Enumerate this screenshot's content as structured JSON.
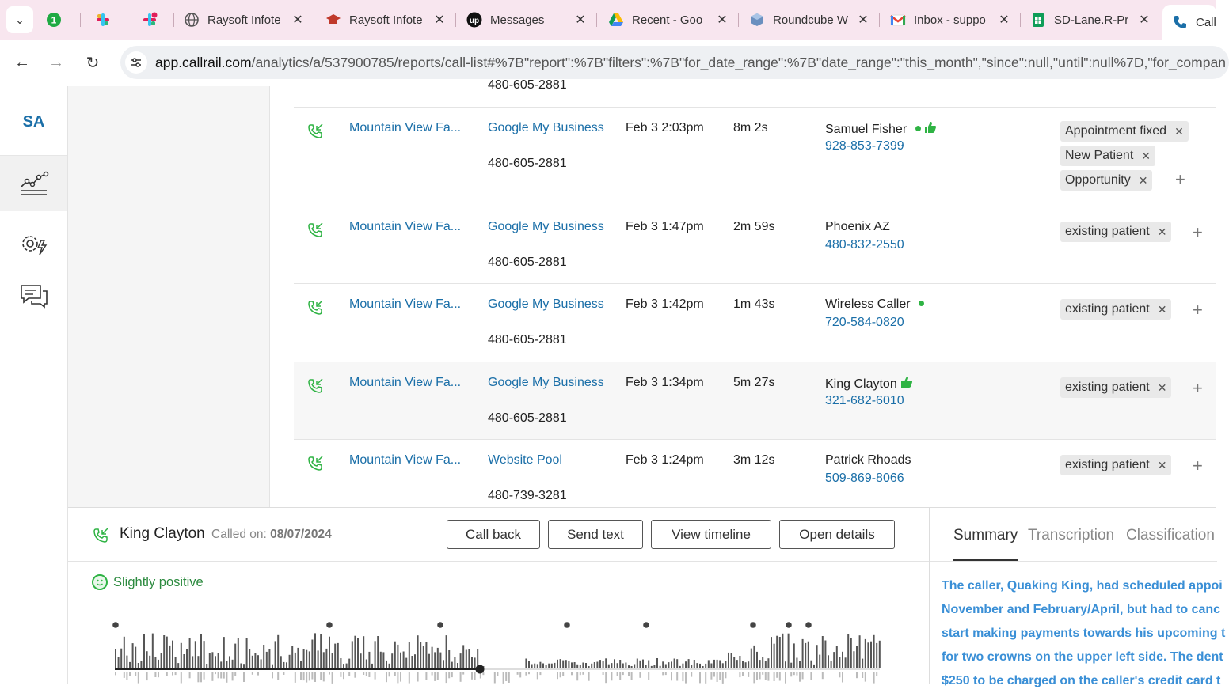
{
  "browser": {
    "tabs": [
      {
        "title": "",
        "icon": "counter-badge-icon",
        "badge": "1"
      },
      {
        "title": "",
        "icon": "slack-icon"
      },
      {
        "title": "",
        "icon": "slack-notify-icon"
      },
      {
        "title": "Raysoft Infote",
        "icon": "globe-icon"
      },
      {
        "title": "Raysoft Infote",
        "icon": "graduation-icon"
      },
      {
        "title": "Messages",
        "icon": "upwork-icon"
      },
      {
        "title": "Recent - Goo",
        "icon": "google-drive-icon"
      },
      {
        "title": "Roundcube W",
        "icon": "roundcube-icon"
      },
      {
        "title": "Inbox - suppo",
        "icon": "gmail-icon"
      },
      {
        "title": "SD-Lane.R-Pr",
        "icon": "google-sheets-icon"
      },
      {
        "title": "Call",
        "icon": "phone-icon"
      }
    ],
    "url_host": "app.callrail.com",
    "url_path": "/analytics/a/537900785/reports/call-list#%7B\"report\":%7B\"filters\":%7B\"for_date_range\":%7B\"date_range\":\"this_month\",\"since\":null,\"until\":null%7D,\"for_compan"
  },
  "sidebar": {
    "logo": "SA",
    "items": [
      {
        "icon": "analytics-chart-icon"
      },
      {
        "icon": "settings-gears-icon"
      },
      {
        "icon": "chat-bubbles-icon"
      }
    ]
  },
  "calls": {
    "partial_top_number": "480-605-2881",
    "rows": [
      {
        "company": "Mountain View Fa...",
        "source": "Google My Business",
        "tracking_number": "480-605-2881",
        "datetime": "Feb 3 2:03pm",
        "duration": "8m 2s",
        "caller": "Samuel Fisher",
        "phone": "928-853-7399",
        "status_dot": true,
        "thumbs_up": true,
        "tags": [
          "Appointment fixed",
          "New Patient",
          "Opportunity"
        ]
      },
      {
        "company": "Mountain View Fa...",
        "source": "Google My Business",
        "tracking_number": "480-605-2881",
        "datetime": "Feb 3 1:47pm",
        "duration": "2m 59s",
        "caller": "Phoenix AZ",
        "phone": "480-832-2550",
        "status_dot": false,
        "thumbs_up": false,
        "tags": [
          "existing patient"
        ]
      },
      {
        "company": "Mountain View Fa...",
        "source": "Google My Business",
        "tracking_number": "480-605-2881",
        "datetime": "Feb 3 1:42pm",
        "duration": "1m 43s",
        "caller": "Wireless Caller",
        "phone": "720-584-0820",
        "status_dot": true,
        "thumbs_up": false,
        "tags": [
          "existing patient"
        ]
      },
      {
        "company": "Mountain View Fa...",
        "source": "Google My Business",
        "tracking_number": "480-605-2881",
        "datetime": "Feb 3 1:34pm",
        "duration": "5m 27s",
        "caller": "King Clayton",
        "phone": "321-682-6010",
        "status_dot": false,
        "thumbs_up": true,
        "tags": [
          "existing patient"
        ]
      },
      {
        "company": "Mountain View Fa...",
        "source": "Website Pool",
        "tracking_number": "480-739-3281",
        "datetime": "Feb 3 1:24pm",
        "duration": "3m 12s",
        "caller": "Patrick Rhoads",
        "phone": "509-869-8066",
        "status_dot": false,
        "thumbs_up": false,
        "tags": [
          "existing patient"
        ]
      }
    ]
  },
  "detail": {
    "caller_name": "King Clayton",
    "called_on_label": "Called on:",
    "called_on_date": "08/07/2024",
    "buttons": {
      "call_back": "Call back",
      "send_text": "Send text",
      "view_timeline": "View timeline",
      "open_details": "Open details"
    },
    "sentiment": "Slightly positive",
    "tabs": {
      "summary": "Summary",
      "transcription": "Transcription",
      "classification": "Classification"
    },
    "summary_lines": [
      "The caller, Quaking King, had scheduled appoi",
      "November and February/April, but had to canc",
      "start making payments towards his upcoming t",
      "for two crowns on the upper left side. The dent",
      "$250 to be charged on the caller's credit card t"
    ]
  },
  "colors": {
    "link": "#1b6fa8",
    "positive": "#2fb344",
    "summary_text": "#3a8fd6"
  }
}
